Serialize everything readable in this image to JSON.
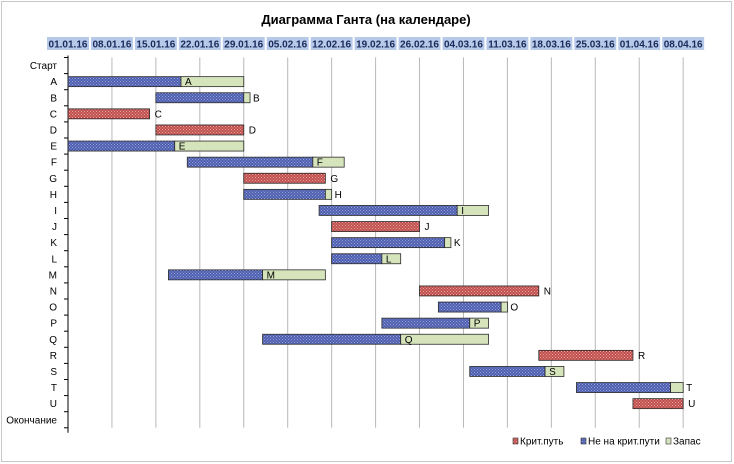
{
  "chart_data": {
    "type": "bar",
    "title": "Диаграмма Ганта (на календаре)",
    "xlabel": "",
    "ylabel": "",
    "x_axis_position": "top",
    "xlim": [
      "2016-01-01",
      "2016-04-11"
    ],
    "x_ticks": [
      "01.01.16",
      "08.01.16",
      "15.01.16",
      "22.01.16",
      "29.01.16",
      "05.02.16",
      "12.02.16",
      "19.02.16",
      "26.02.16",
      "04.03.16",
      "11.03.16",
      "18.03.16",
      "25.03.16",
      "01.04.16",
      "08.04.16"
    ],
    "categories": [
      "Старт",
      "A",
      "B",
      "C",
      "D",
      "E",
      "F",
      "G",
      "H",
      "I",
      "J",
      "K",
      "L",
      "M",
      "N",
      "O",
      "P",
      "Q",
      "R",
      "S",
      "T",
      "U",
      "Окончание"
    ],
    "grid": "vertical",
    "legend": {
      "position": "bottom-right",
      "items": [
        "Крит.путь",
        "Не на крит.пути",
        "Запас"
      ]
    },
    "colors": {
      "critical": "#c0504d",
      "non_critical": "#4f5fb0",
      "slack": "#d6e4bc",
      "header_fill": "#b7c9e8"
    },
    "tasks": [
      {
        "label": "A",
        "type": "non_critical",
        "start": "2016-01-01",
        "end": "2016-01-19",
        "slack_end": "2016-01-29"
      },
      {
        "label": "B",
        "type": "non_critical",
        "start": "2016-01-15",
        "end": "2016-01-29",
        "slack_end": "2016-01-30"
      },
      {
        "label": "C",
        "type": "critical",
        "start": "2016-01-01",
        "end": "2016-01-14"
      },
      {
        "label": "D",
        "type": "critical",
        "start": "2016-01-15",
        "end": "2016-01-29"
      },
      {
        "label": "E",
        "type": "non_critical",
        "start": "2016-01-01",
        "end": "2016-01-18",
        "slack_end": "2016-01-29"
      },
      {
        "label": "F",
        "type": "non_critical",
        "start": "2016-01-20",
        "end": "2016-02-09",
        "slack_end": "2016-02-14"
      },
      {
        "label": "G",
        "type": "critical",
        "start": "2016-01-29",
        "end": "2016-02-11"
      },
      {
        "label": "H",
        "type": "non_critical",
        "start": "2016-01-29",
        "end": "2016-02-11",
        "slack_end": "2016-02-12"
      },
      {
        "label": "I",
        "type": "non_critical",
        "start": "2016-02-10",
        "end": "2016-03-03",
        "slack_end": "2016-03-08"
      },
      {
        "label": "J",
        "type": "critical",
        "start": "2016-02-12",
        "end": "2016-02-26"
      },
      {
        "label": "K",
        "type": "non_critical",
        "start": "2016-02-12",
        "end": "2016-03-01",
        "slack_end": "2016-03-02"
      },
      {
        "label": "L",
        "type": "non_critical",
        "start": "2016-02-12",
        "end": "2016-02-20",
        "slack_end": "2016-02-23"
      },
      {
        "label": "M",
        "type": "non_critical",
        "start": "2016-01-17",
        "end": "2016-02-01",
        "slack_end": "2016-02-11"
      },
      {
        "label": "N",
        "type": "critical",
        "start": "2016-02-26",
        "end": "2016-03-16"
      },
      {
        "label": "O",
        "type": "non_critical",
        "start": "2016-02-29",
        "end": "2016-03-10",
        "slack_end": "2016-03-11"
      },
      {
        "label": "P",
        "type": "non_critical",
        "start": "2016-02-20",
        "end": "2016-03-05",
        "slack_end": "2016-03-08"
      },
      {
        "label": "Q",
        "type": "non_critical",
        "start": "2016-02-01",
        "end": "2016-02-23",
        "slack_end": "2016-03-08"
      },
      {
        "label": "R",
        "type": "critical",
        "start": "2016-03-16",
        "end": "2016-03-31"
      },
      {
        "label": "S",
        "type": "non_critical",
        "start": "2016-03-05",
        "end": "2016-03-17",
        "slack_end": "2016-03-20"
      },
      {
        "label": "T",
        "type": "non_critical",
        "start": "2016-03-22",
        "end": "2016-04-06",
        "slack_end": "2016-04-08"
      },
      {
        "label": "U",
        "type": "critical",
        "start": "2016-03-31",
        "end": "2016-04-08"
      }
    ]
  }
}
